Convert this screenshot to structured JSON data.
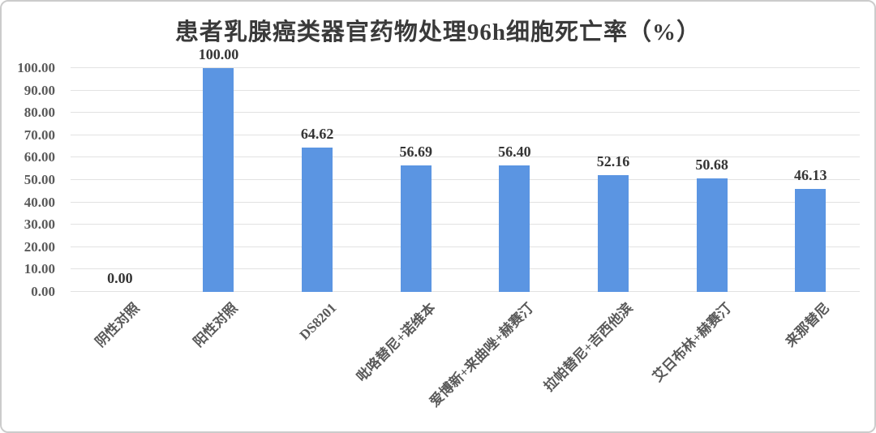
{
  "frame": {
    "background": "#ffffff",
    "border_color": "#cccccc"
  },
  "chart_data": {
    "type": "bar",
    "title": "患者乳腺癌类器官药物处理96h细胞死亡率（%）",
    "categories": [
      "阴性对照",
      "阳性对照",
      "DS8201",
      "吡咯替尼+诺维本",
      "爱博新+来曲唑+赫赛汀",
      "拉帕替尼+吉西他滨",
      "艾日布林+赫赛汀",
      "来那替尼"
    ],
    "values": [
      0,
      100,
      64.62,
      56.69,
      56.4,
      52.16,
      50.68,
      46.13
    ],
    "value_labels": [
      "0.00",
      "100.00",
      "64.62",
      "56.69",
      "56.40",
      "52.16",
      "50.68",
      "46.13"
    ],
    "xlabel": "",
    "ylabel": "",
    "ylim": [
      0,
      100
    ],
    "y_ticks": [
      "0.00",
      "10.00",
      "20.00",
      "30.00",
      "40.00",
      "50.00",
      "60.00",
      "70.00",
      "80.00",
      "90.00",
      "100.00"
    ],
    "grid": true,
    "legend": "none",
    "colors": {
      "bar": "#5b95e2",
      "gridline": "#e2e2e2",
      "axis_label": "#595959",
      "value_label": "#353535",
      "title": "#3a3a3a"
    }
  }
}
